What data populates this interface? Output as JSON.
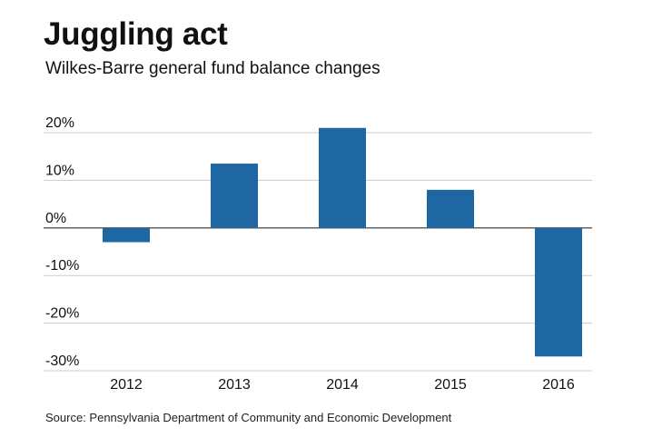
{
  "chart_data": {
    "type": "bar",
    "title": "Juggling act",
    "subtitle": "Wilkes-Barre general fund balance changes",
    "categories": [
      "2012",
      "2013",
      "2014",
      "2015",
      "2016"
    ],
    "values": [
      -3,
      13.5,
      21,
      8,
      -27
    ],
    "y_ticks": [
      20,
      10,
      0,
      -10,
      -20,
      -30
    ],
    "y_tick_labels": [
      "20%",
      "10%",
      "0%",
      "-10%",
      "-20%",
      "-30%"
    ],
    "ylim": [
      -30,
      20
    ],
    "xlabel": "",
    "ylabel": "",
    "grid": true,
    "bar_color": "#1f67a3",
    "grid_color": "#cccccc",
    "zero_line_color": "#555555"
  },
  "source": "Source: Pennsylvania Department of Community and Economic Development"
}
